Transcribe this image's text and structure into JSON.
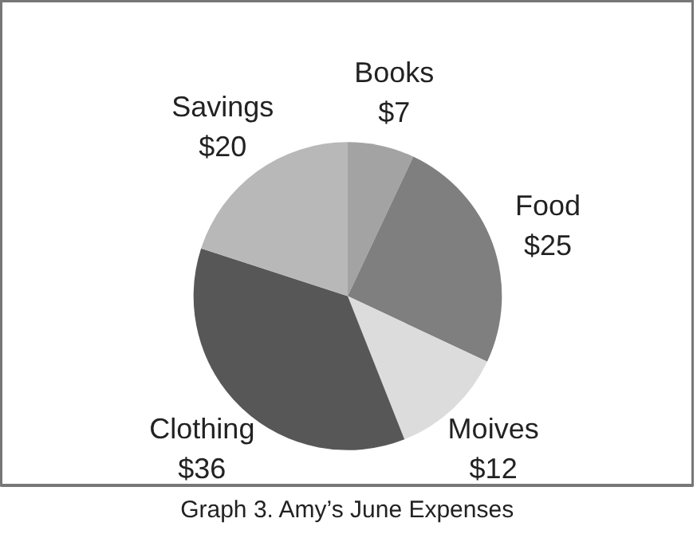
{
  "chart_data": {
    "type": "pie",
    "title": "Graph 3. Amy’s June Expenses",
    "categories": [
      "Books",
      "Food",
      "Moives",
      "Clothing",
      "Savings"
    ],
    "values": [
      7,
      25,
      12,
      36,
      20
    ],
    "value_labels": [
      "$7",
      "$25",
      "$12",
      "$36",
      "$20"
    ],
    "colors": [
      "#a3a3a3",
      "#7f7f7f",
      "#dcdcdc",
      "#575757",
      "#b8b8b8"
    ]
  }
}
